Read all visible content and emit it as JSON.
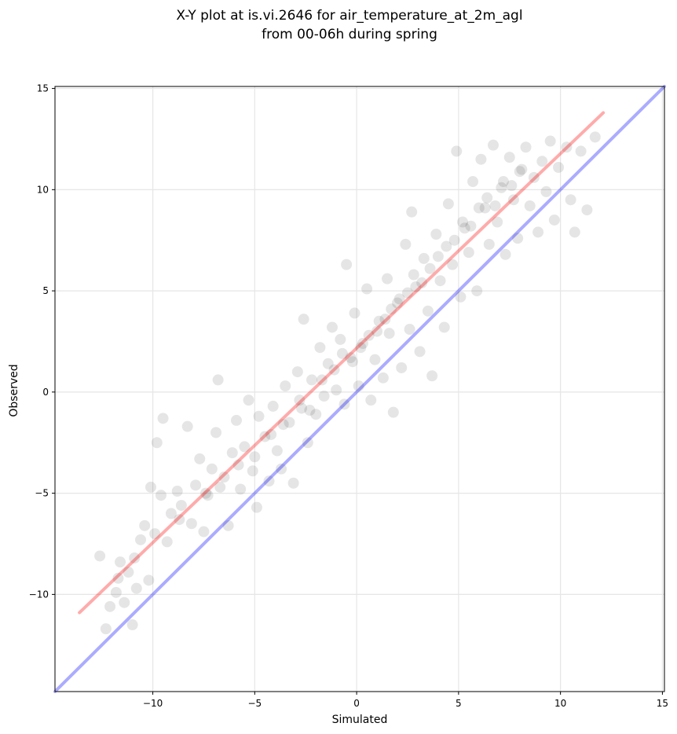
{
  "chart_data": {
    "type": "scatter",
    "title": "X-Y plot at is.vi.2646 for air_temperature_at_2m_agl",
    "subtitle": "from 00-06h during spring",
    "xlabel": "Simulated",
    "ylabel": "Observed",
    "xlim": [
      -14.8,
      15.1
    ],
    "ylim": [
      -14.8,
      15.1
    ],
    "x_ticks": [
      -10,
      -5,
      0,
      5,
      10,
      15
    ],
    "y_ticks": [
      -10,
      -5,
      0,
      5,
      10,
      15
    ],
    "x_tick_labels": [
      "−10",
      "−5",
      "0",
      "5",
      "10",
      "15"
    ],
    "y_tick_labels": [
      "−10",
      "−5",
      "0",
      "5",
      "10",
      "15"
    ],
    "grid": true,
    "point_color": "#000000",
    "point_opacity": 0.1,
    "points": [
      [
        -12.6,
        -8.1
      ],
      [
        -12.3,
        -11.7
      ],
      [
        -12.1,
        -10.6
      ],
      [
        -11.8,
        -9.9
      ],
      [
        -11.6,
        -8.4
      ],
      [
        -11.4,
        -10.4
      ],
      [
        -11.2,
        -8.9
      ],
      [
        -11.0,
        -11.5
      ],
      [
        -10.8,
        -9.7
      ],
      [
        -10.6,
        -7.3
      ],
      [
        -10.4,
        -6.6
      ],
      [
        -10.2,
        -9.3
      ],
      [
        -10.1,
        -4.7
      ],
      [
        -9.8,
        -2.5
      ],
      [
        -9.6,
        -5.1
      ],
      [
        -9.5,
        -1.3
      ],
      [
        -9.3,
        -7.4
      ],
      [
        -9.1,
        -6.0
      ],
      [
        -8.8,
        -4.9
      ],
      [
        -8.6,
        -5.6
      ],
      [
        -8.3,
        -1.7
      ],
      [
        -8.1,
        -6.5
      ],
      [
        -7.9,
        -4.6
      ],
      [
        -7.7,
        -3.3
      ],
      [
        -7.5,
        -6.9
      ],
      [
        -7.3,
        -5.1
      ],
      [
        -7.1,
        -3.8
      ],
      [
        -6.9,
        -2.0
      ],
      [
        -6.8,
        0.6
      ],
      [
        -6.5,
        -4.2
      ],
      [
        -6.3,
        -6.6
      ],
      [
        -6.1,
        -3.0
      ],
      [
        -5.9,
        -1.4
      ],
      [
        -5.7,
        -4.8
      ],
      [
        -5.5,
        -2.7
      ],
      [
        -5.3,
        -0.4
      ],
      [
        -5.1,
        -3.9
      ],
      [
        -4.9,
        -5.7
      ],
      [
        -4.8,
        -1.2
      ],
      [
        -4.5,
        -2.2
      ],
      [
        -4.3,
        -4.4
      ],
      [
        -4.1,
        -0.7
      ],
      [
        -3.9,
        -2.9
      ],
      [
        -3.7,
        -3.8
      ],
      [
        -3.5,
        0.3
      ],
      [
        -3.3,
        -1.5
      ],
      [
        -3.1,
        -4.5
      ],
      [
        -2.9,
        1.0
      ],
      [
        -2.7,
        -0.8
      ],
      [
        -2.6,
        3.6
      ],
      [
        -2.4,
        -2.5
      ],
      [
        -2.2,
        0.6
      ],
      [
        -2.0,
        -1.1
      ],
      [
        -1.8,
        2.2
      ],
      [
        -1.6,
        -0.2
      ],
      [
        -1.4,
        1.4
      ],
      [
        -1.2,
        3.2
      ],
      [
        -1.0,
        0.1
      ],
      [
        -0.8,
        2.6
      ],
      [
        -0.6,
        -0.6
      ],
      [
        -0.5,
        6.3
      ],
      [
        -0.3,
        1.7
      ],
      [
        -0.1,
        3.9
      ],
      [
        0.1,
        0.3
      ],
      [
        0.3,
        2.4
      ],
      [
        0.5,
        5.1
      ],
      [
        0.7,
        -0.4
      ],
      [
        0.9,
        1.6
      ],
      [
        1.1,
        3.5
      ],
      [
        1.3,
        0.7
      ],
      [
        1.5,
        5.6
      ],
      [
        1.6,
        2.9
      ],
      [
        1.8,
        -1.0
      ],
      [
        2.0,
        4.4
      ],
      [
        2.2,
        1.2
      ],
      [
        2.4,
        7.3
      ],
      [
        2.6,
        3.1
      ],
      [
        2.7,
        8.9
      ],
      [
        2.9,
        5.2
      ],
      [
        3.1,
        2.0
      ],
      [
        3.3,
        6.6
      ],
      [
        3.5,
        4.0
      ],
      [
        3.7,
        0.8
      ],
      [
        3.9,
        7.8
      ],
      [
        4.1,
        5.5
      ],
      [
        4.3,
        3.2
      ],
      [
        4.5,
        9.3
      ],
      [
        4.7,
        6.3
      ],
      [
        4.9,
        11.9
      ],
      [
        5.1,
        4.7
      ],
      [
        5.3,
        8.1
      ],
      [
        5.5,
        6.9
      ],
      [
        5.7,
        10.4
      ],
      [
        5.9,
        5.0
      ],
      [
        6.1,
        11.5
      ],
      [
        6.3,
        9.1
      ],
      [
        6.5,
        7.3
      ],
      [
        6.7,
        12.2
      ],
      [
        6.9,
        8.4
      ],
      [
        7.1,
        10.1
      ],
      [
        7.3,
        6.8
      ],
      [
        7.5,
        11.6
      ],
      [
        7.7,
        9.5
      ],
      [
        7.9,
        7.6
      ],
      [
        8.1,
        11.0
      ],
      [
        8.3,
        12.1
      ],
      [
        8.5,
        9.2
      ],
      [
        8.7,
        10.6
      ],
      [
        8.9,
        7.9
      ],
      [
        9.1,
        11.4
      ],
      [
        9.3,
        9.9
      ],
      [
        9.5,
        12.4
      ],
      [
        9.7,
        8.5
      ],
      [
        9.9,
        11.1
      ],
      [
        10.3,
        12.1
      ],
      [
        10.5,
        9.5
      ],
      [
        10.7,
        7.9
      ],
      [
        11.0,
        11.9
      ],
      [
        11.3,
        9.0
      ],
      [
        11.7,
        12.6
      ],
      [
        -11.7,
        -9.2
      ],
      [
        -10.9,
        -8.2
      ],
      [
        -9.9,
        -7.0
      ],
      [
        -8.7,
        -6.3
      ],
      [
        -7.4,
        -5.0
      ],
      [
        -6.7,
        -4.7
      ],
      [
        -5.8,
        -3.6
      ],
      [
        -5.0,
        -3.2
      ],
      [
        -4.2,
        -2.1
      ],
      [
        -3.6,
        -1.6
      ],
      [
        -2.8,
        -0.4
      ],
      [
        -2.3,
        -0.9
      ],
      [
        -1.7,
        0.6
      ],
      [
        -1.1,
        1.1
      ],
      [
        -0.7,
        1.9
      ],
      [
        -0.2,
        1.5
      ],
      [
        0.2,
        2.2
      ],
      [
        0.6,
        2.8
      ],
      [
        1.0,
        3.0
      ],
      [
        1.4,
        3.6
      ],
      [
        1.7,
        4.1
      ],
      [
        2.1,
        4.6
      ],
      [
        2.5,
        4.9
      ],
      [
        2.8,
        5.8
      ],
      [
        3.2,
        5.4
      ],
      [
        3.6,
        6.1
      ],
      [
        4.0,
        6.7
      ],
      [
        4.4,
        7.2
      ],
      [
        4.8,
        7.5
      ],
      [
        5.2,
        8.4
      ],
      [
        5.6,
        8.2
      ],
      [
        6.0,
        9.1
      ],
      [
        6.4,
        9.6
      ],
      [
        6.8,
        9.2
      ],
      [
        7.2,
        10.4
      ],
      [
        7.6,
        10.2
      ],
      [
        8.0,
        10.9
      ]
    ],
    "reference_lines": [
      {
        "label": "1:1 line",
        "color": "#0000ff",
        "opacity": 0.33,
        "points": [
          [
            -14.8,
            -14.8
          ],
          [
            15.1,
            15.1
          ]
        ]
      },
      {
        "label": "regression line",
        "color": "#ff0000",
        "opacity": 0.33,
        "points": [
          [
            -13.6,
            -10.9
          ],
          [
            12.1,
            13.8
          ]
        ]
      }
    ]
  }
}
